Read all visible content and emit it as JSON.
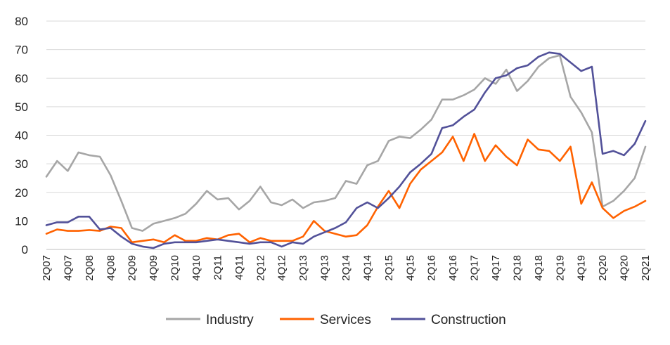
{
  "chart_data": {
    "type": "line",
    "title": "",
    "xlabel": "",
    "ylabel": "",
    "ylim": [
      0,
      80
    ],
    "yticks": [
      "0",
      "10",
      "20",
      "30",
      "40",
      "50",
      "60",
      "70",
      "80"
    ],
    "grid": "horizontal",
    "legend_position": "bottom",
    "x": [
      "2Q07",
      "3Q07",
      "4Q07",
      "1Q08",
      "2Q08",
      "3Q08",
      "4Q08",
      "1Q09",
      "2Q09",
      "3Q09",
      "4Q09",
      "1Q10",
      "2Q10",
      "3Q10",
      "4Q10",
      "1Q11",
      "2Q11",
      "3Q11",
      "4Q11",
      "1Q12",
      "2Q12",
      "3Q12",
      "4Q12",
      "1Q13",
      "2Q13",
      "3Q13",
      "4Q13",
      "1Q14",
      "2Q14",
      "3Q14",
      "4Q14",
      "1Q15",
      "2Q15",
      "3Q15",
      "4Q15",
      "1Q16",
      "2Q16",
      "3Q16",
      "4Q16",
      "1Q17",
      "2Q17",
      "3Q17",
      "4Q17",
      "1Q18",
      "2Q18",
      "3Q18",
      "4Q18",
      "1Q19",
      "2Q19",
      "3Q19",
      "4Q19",
      "1Q20",
      "2Q20",
      "3Q20",
      "4Q20",
      "1Q21",
      "2Q21"
    ],
    "x_tick_labels": [
      "2Q07",
      "4Q07",
      "2Q08",
      "4Q08",
      "2Q09",
      "4Q09",
      "2Q10",
      "4Q10",
      "2Q11",
      "4Q11",
      "2Q12",
      "4Q12",
      "2Q13",
      "4Q13",
      "2Q14",
      "4Q14",
      "2Q15",
      "4Q15",
      "2Q16",
      "4Q16",
      "2Q17",
      "4Q17",
      "2Q18",
      "4Q18",
      "2Q19",
      "4Q19",
      "2Q20",
      "4Q20",
      "2Q21"
    ],
    "series": [
      {
        "name": "Industry",
        "color": "#a6a6a6",
        "values": [
          25.5,
          31,
          27.5,
          34,
          33,
          32.5,
          26,
          17,
          7.5,
          6.5,
          9,
          10,
          11,
          12.5,
          16,
          20.5,
          17.5,
          18,
          14,
          17,
          22,
          16.5,
          15.5,
          17.5,
          14.5,
          16.5,
          17,
          18,
          24,
          23,
          29.5,
          31,
          38,
          39.5,
          39,
          42,
          45.5,
          52.5,
          52.5,
          54,
          56,
          60,
          58,
          63,
          55.5,
          59,
          64,
          67,
          68,
          53.5,
          48,
          41,
          15,
          17,
          20.5,
          25,
          36
        ]
      },
      {
        "name": "Services",
        "color": "#ff6200",
        "values": [
          5.5,
          7,
          6.5,
          6.5,
          6.8,
          6.5,
          8,
          7.5,
          2.5,
          3,
          3.5,
          2.5,
          5,
          3,
          3,
          4,
          3.5,
          5,
          5.5,
          2.5,
          4,
          3,
          3,
          3,
          4.5,
          10,
          6.5,
          5.5,
          4.5,
          5,
          8.5,
          15,
          20.5,
          14.5,
          23,
          28,
          31,
          34,
          39.5,
          31,
          40.5,
          31,
          36.5,
          32.5,
          29.5,
          38.5,
          35,
          34.5,
          31,
          36,
          16,
          23.5,
          14.5,
          11,
          13.5,
          15,
          17
        ]
      },
      {
        "name": "Construction",
        "color": "#525199",
        "values": [
          8.5,
          9.5,
          9.5,
          11.5,
          11.5,
          7,
          7.5,
          4.5,
          2,
          1,
          0.5,
          2,
          2.5,
          2.5,
          2.5,
          3,
          3.5,
          3,
          2.5,
          2,
          2.5,
          2.5,
          1,
          2.5,
          2,
          4.5,
          6,
          7.5,
          9.5,
          14.5,
          16.5,
          14.5,
          18,
          22,
          27,
          30,
          33.5,
          42.5,
          43.5,
          46.5,
          49,
          55,
          60,
          61,
          63.5,
          64.5,
          67.5,
          69,
          68.5,
          65.5,
          62.5,
          64,
          33.5,
          34.5,
          33,
          37,
          45
        ]
      }
    ]
  }
}
